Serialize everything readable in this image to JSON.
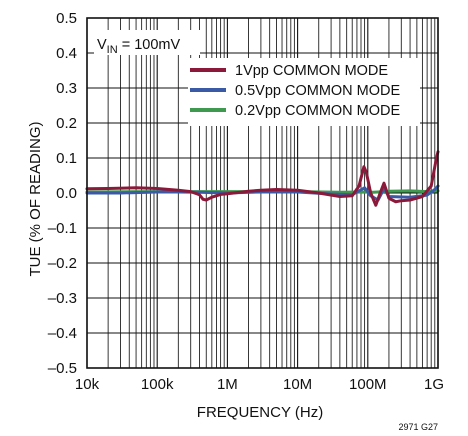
{
  "chart_data": {
    "type": "line",
    "xscale": "log",
    "xlim": [
      10000,
      1000000000
    ],
    "ylim": [
      -0.5,
      0.5
    ],
    "xlabel": "FREQUENCY (Hz)",
    "ylabel": "TUE (% OF READING)",
    "x_ticks": [
      {
        "value": 10000,
        "label": "10k"
      },
      {
        "value": 100000,
        "label": "100k"
      },
      {
        "value": 1000000,
        "label": "1M"
      },
      {
        "value": 10000000,
        "label": "10M"
      },
      {
        "value": 100000000,
        "label": "100M"
      },
      {
        "value": 1000000000,
        "label": "1G"
      }
    ],
    "y_ticks": [
      {
        "value": 0.5,
        "label": "0.5"
      },
      {
        "value": 0.4,
        "label": "0.4"
      },
      {
        "value": 0.3,
        "label": "0.3"
      },
      {
        "value": 0.2,
        "label": "0.2"
      },
      {
        "value": 0.1,
        "label": "0.1"
      },
      {
        "value": 0.0,
        "label": "0.0"
      },
      {
        "value": -0.1,
        "label": "–0.1"
      },
      {
        "value": -0.2,
        "label": "–0.2"
      },
      {
        "value": -0.3,
        "label": "–0.3"
      },
      {
        "value": -0.4,
        "label": "–0.4"
      },
      {
        "value": -0.5,
        "label": "–0.5"
      }
    ],
    "grid": true,
    "legend_position": "top-right",
    "annotation": {
      "prefix": "V",
      "subscript": "IN",
      "suffix": " = 100mV"
    },
    "figure_code": "2971 G27",
    "series": [
      {
        "name": "1Vpp COMMON MODE",
        "color": "#8b1a3a",
        "points": [
          [
            10000,
            0.012
          ],
          [
            20000,
            0.013
          ],
          [
            50000,
            0.015
          ],
          [
            100000,
            0.013
          ],
          [
            200000,
            0.008
          ],
          [
            300000,
            0.004
          ],
          [
            400000,
            -0.005
          ],
          [
            450000,
            -0.018
          ],
          [
            500000,
            -0.02
          ],
          [
            600000,
            -0.012
          ],
          [
            800000,
            -0.004
          ],
          [
            1000000,
            -0.002
          ],
          [
            2000000,
            0.005
          ],
          [
            3000000,
            0.008
          ],
          [
            5000000,
            0.01
          ],
          [
            10000000,
            0.008
          ],
          [
            20000000,
            0.0
          ],
          [
            40000000,
            -0.01
          ],
          [
            60000000,
            -0.008
          ],
          [
            75000000,
            0.02
          ],
          [
            88000000,
            0.075
          ],
          [
            95000000,
            0.06
          ],
          [
            110000000,
            0.0
          ],
          [
            130000000,
            -0.035
          ],
          [
            150000000,
            0.0
          ],
          [
            170000000,
            0.028
          ],
          [
            200000000,
            -0.015
          ],
          [
            250000000,
            -0.025
          ],
          [
            300000000,
            -0.022
          ],
          [
            400000000,
            -0.02
          ],
          [
            600000000,
            -0.01
          ],
          [
            800000000,
            0.02
          ],
          [
            950000000,
            0.1
          ],
          [
            1000000000,
            0.118
          ]
        ]
      },
      {
        "name": "0.5Vpp COMMON MODE",
        "color": "#3b5aa5",
        "points": [
          [
            10000,
            0.0
          ],
          [
            30000,
            0.0
          ],
          [
            100000,
            0.003
          ],
          [
            200000,
            0.003
          ],
          [
            400000,
            0.002
          ],
          [
            1000000,
            0.0
          ],
          [
            3000000,
            0.003
          ],
          [
            10000000,
            0.003
          ],
          [
            30000000,
            -0.003
          ],
          [
            60000000,
            -0.005
          ],
          [
            90000000,
            0.015
          ],
          [
            110000000,
            -0.008
          ],
          [
            140000000,
            -0.02
          ],
          [
            170000000,
            0.012
          ],
          [
            200000000,
            -0.01
          ],
          [
            400000000,
            -0.012
          ],
          [
            700000000,
            -0.006
          ],
          [
            900000000,
            0.01
          ],
          [
            1000000000,
            0.02
          ]
        ]
      },
      {
        "name": "0.2Vpp COMMON MODE",
        "color": "#3f9a50",
        "points": [
          [
            10000,
            0.003
          ],
          [
            100000,
            0.004
          ],
          [
            300000,
            0.004
          ],
          [
            1000000,
            0.004
          ],
          [
            10000000,
            0.004
          ],
          [
            40000000,
            0.002
          ],
          [
            80000000,
            0.003
          ],
          [
            120000000,
            0.002
          ],
          [
            200000000,
            0.005
          ],
          [
            400000000,
            0.006
          ],
          [
            700000000,
            0.004
          ],
          [
            1000000000,
            0.006
          ]
        ]
      }
    ]
  }
}
